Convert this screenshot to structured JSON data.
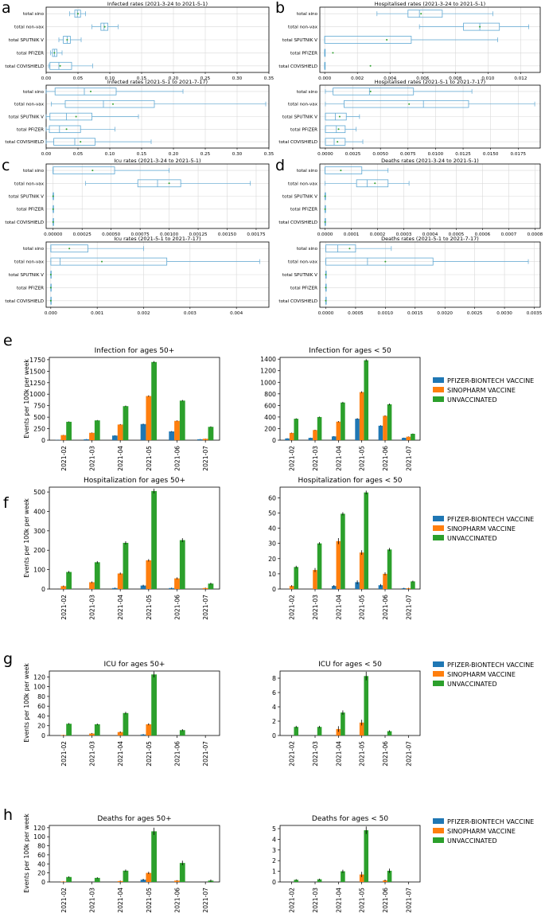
{
  "colors": {
    "pfizer": "#1f77b4",
    "sinopharm": "#ff7f0e",
    "unvax": "#2ca02c",
    "box": "#5fa8d3",
    "median": "#2ca02c",
    "axis": "#000000",
    "grid": "#d9d9d9"
  },
  "box_categories": [
    "total sino",
    "total non-vax",
    "total SPUTNIK V",
    "total PFIZER",
    "total COVISHIELD"
  ],
  "bar_categories": [
    "2021-02",
    "2021-03",
    "2021-04",
    "2021-05",
    "2021-06",
    "2021-07"
  ],
  "legend": [
    "PFIZER-BIONTECH VACCINE",
    "SINOPHARM VACCINE",
    "UNVACCINATED"
  ],
  "y_label": "Events per 100k per week",
  "panel_labels": [
    "a",
    "b",
    "c",
    "d",
    "e",
    "f",
    "g",
    "h"
  ],
  "chart_data": [
    {
      "type": "box",
      "id": "a1",
      "title": "Infected rates (2021-3-24 to 2021-5-1)",
      "xticks": [
        "0.00",
        "0.05",
        "0.10",
        "0.15",
        "0.20",
        "0.25",
        "0.30",
        "0.35"
      ],
      "xlim": [
        0,
        0.35
      ],
      "grid": true,
      "boxes": [
        {
          "min": 0.037,
          "q1": 0.045,
          "med": 0.049,
          "mean": 0.05,
          "q3": 0.054,
          "max": 0.062
        },
        {
          "min": 0.072,
          "q1": 0.086,
          "med": 0.091,
          "mean": 0.092,
          "q3": 0.097,
          "max": 0.113
        },
        {
          "min": 0.02,
          "q1": 0.027,
          "med": 0.033,
          "mean": 0.033,
          "q3": 0.038,
          "max": 0.055
        },
        {
          "min": 0.007,
          "q1": 0.01,
          "med": 0.013,
          "mean": 0.013,
          "q3": 0.017,
          "max": 0.025
        },
        {
          "min": 0.004,
          "q1": 0.006,
          "med": 0.02,
          "mean": 0.022,
          "q3": 0.04,
          "max": 0.073
        }
      ]
    },
    {
      "type": "box",
      "id": "b1",
      "title": "Hospitalised rates (2021-3-24 to 2021-5-1)",
      "xticks": [
        "0.000",
        "0.002",
        "0.004",
        "0.006",
        "0.008",
        "0.010",
        "0.012"
      ],
      "xlim": [
        -0.0003,
        0.0132
      ],
      "grid": true,
      "boxes": [
        {
          "min": 0.0032,
          "q1": 0.0051,
          "med": 0.0058,
          "mean": 0.0059,
          "q3": 0.0072,
          "max": 0.0103
        },
        {
          "min": 0.0058,
          "q1": 0.0085,
          "med": 0.0095,
          "mean": 0.0095,
          "q3": 0.0107,
          "max": 0.0125
        },
        {
          "min": 0.0,
          "q1": 0.0,
          "med": 0.0,
          "mean": 0.0038,
          "q3": 0.0053,
          "max": 0.0106
        },
        {
          "min": 0.0,
          "q1": 0.0,
          "med": 0.0,
          "mean": 0.0005,
          "q3": 0.0,
          "max": 0.0
        },
        {
          "min": 0.0,
          "q1": 0.0,
          "med": 0.0,
          "mean": 0.0028,
          "q3": 0.0,
          "max": 0.0
        }
      ]
    },
    {
      "type": "box",
      "id": "a2",
      "title": "Infected rates (2021-5-1 to 2021-7-17)",
      "xticks": [
        "0.00",
        "0.05",
        "0.10",
        "0.15",
        "0.20",
        "0.25",
        "0.30",
        "0.35"
      ],
      "xlim": [
        0,
        0.35
      ],
      "grid": true,
      "boxes": [
        {
          "min": 0.0,
          "q1": 0.014,
          "med": 0.06,
          "mean": 0.07,
          "q3": 0.11,
          "max": 0.215
        },
        {
          "min": 0.008,
          "q1": 0.03,
          "med": 0.09,
          "mean": 0.105,
          "q3": 0.17,
          "max": 0.345
        },
        {
          "min": 0.0,
          "q1": 0.006,
          "med": 0.032,
          "mean": 0.047,
          "q3": 0.072,
          "max": 0.145
        },
        {
          "min": 0.0,
          "q1": 0.005,
          "med": 0.021,
          "mean": 0.032,
          "q3": 0.054,
          "max": 0.108
        },
        {
          "min": 0.0,
          "q1": 0.012,
          "med": 0.045,
          "mean": 0.054,
          "q3": 0.077,
          "max": 0.165
        }
      ]
    },
    {
      "type": "box",
      "id": "b2",
      "title": "Hospitalised rates (2021-5-1 to 2021-7-17)",
      "xticks": [
        "0.0000",
        "0.0025",
        "0.0050",
        "0.0075",
        "0.0100",
        "0.0125",
        "0.0150",
        "0.0175"
      ],
      "xlim": [
        -0.0005,
        0.0195
      ],
      "grid": true,
      "boxes": [
        {
          "min": 0.0,
          "q1": 0.0007,
          "med": 0.004,
          "mean": 0.0041,
          "q3": 0.008,
          "max": 0.0133
        },
        {
          "min": 0.0,
          "q1": 0.0017,
          "med": 0.0089,
          "mean": 0.0076,
          "q3": 0.013,
          "max": 0.019
        },
        {
          "min": 0.0,
          "q1": 0.0,
          "med": 0.0009,
          "mean": 0.0013,
          "q3": 0.0019,
          "max": 0.0031
        },
        {
          "min": 0.0,
          "q1": 0.0,
          "med": 0.001,
          "mean": 0.0012,
          "q3": 0.0018,
          "max": 0.0028
        },
        {
          "min": 0.0,
          "q1": 0.0,
          "med": 0.0008,
          "mean": 0.0011,
          "q3": 0.0018,
          "max": 0.0034
        }
      ]
    },
    {
      "type": "box",
      "id": "c1",
      "title": "Icu rates (2021-3-24 to 2021-5-1)",
      "xticks": [
        "0.00000",
        "0.00025",
        "0.00050",
        "0.00075",
        "0.00100",
        "0.00125",
        "0.00150",
        "0.00175"
      ],
      "xlim": [
        -6e-05,
        0.00186
      ],
      "grid": true,
      "boxes": [
        {
          "min": 0.0,
          "q1": 0.0,
          "med": 0.0,
          "mean": 0.00034,
          "q3": 0.00053,
          "max": 0.001
        },
        {
          "min": 0.00028,
          "q1": 0.00073,
          "med": 0.0009,
          "mean": 0.001,
          "q3": 0.0011,
          "max": 0.0017
        },
        {
          "min": 0.0,
          "q1": 0.0,
          "med": 0.0,
          "mean": 0.0,
          "q3": 0.0,
          "max": 0.0
        },
        {
          "min": 0.0,
          "q1": 0.0,
          "med": 0.0,
          "mean": 0.0,
          "q3": 0.0,
          "max": 0.0
        },
        {
          "min": 0.0,
          "q1": 0.0,
          "med": 0.0,
          "mean": 0.0,
          "q3": 0.0,
          "max": 0.0
        }
      ]
    },
    {
      "type": "box",
      "id": "d1",
      "title": "Deaths rates (2021-3-24 to 2021-5-1)",
      "xticks": [
        "0.0000",
        "0.0001",
        "0.0002",
        "0.0003",
        "0.0004",
        "0.0005",
        "0.0006",
        "0.0007",
        "0.0008"
      ],
      "xlim": [
        -2e-05,
        0.00082
      ],
      "grid": true,
      "boxes": [
        {
          "min": 0.0,
          "q1": 0.0,
          "med": 0.0,
          "mean": 6e-05,
          "q3": 0.00014,
          "max": 0.00024
        },
        {
          "min": 0.0,
          "q1": 0.00012,
          "med": 0.00016,
          "mean": 0.00019,
          "q3": 0.00024,
          "max": 0.00032
        },
        {
          "min": 0.0,
          "q1": 0.0,
          "med": 0.0,
          "mean": 0.0,
          "q3": 0.0,
          "max": 0.0
        },
        {
          "min": 0.0,
          "q1": 0.0,
          "med": 0.0,
          "mean": 0.0,
          "q3": 0.0,
          "max": 0.0
        },
        {
          "min": 0.0,
          "q1": 0.0,
          "med": 0.0,
          "mean": 0.0,
          "q3": 0.0,
          "max": 0.0
        }
      ]
    },
    {
      "type": "box",
      "id": "c2",
      "title": "Icu rates (2021-5-1 to 2021-7-17)",
      "xticks": [
        "0.000",
        "0.001",
        "0.002",
        "0.003",
        "0.004"
      ],
      "xlim": [
        -0.0001,
        0.0047
      ],
      "grid": true,
      "boxes": [
        {
          "min": 0.0,
          "q1": 0.0,
          "med": 0.0,
          "mean": 0.0004,
          "q3": 0.0008,
          "max": 0.002
        },
        {
          "min": 0.0,
          "q1": 0.0,
          "med": 0.0002,
          "mean": 0.0011,
          "q3": 0.0025,
          "max": 0.0045
        },
        {
          "min": 0.0,
          "q1": 0.0,
          "med": 0.0,
          "mean": 0.0,
          "q3": 0.0,
          "max": 0.0
        },
        {
          "min": 0.0,
          "q1": 0.0,
          "med": 0.0,
          "mean": 0.0,
          "q3": 0.0,
          "max": 0.0
        },
        {
          "min": 0.0,
          "q1": 0.0,
          "med": 0.0,
          "mean": 0.0,
          "q3": 0.0,
          "max": 0.0
        }
      ]
    },
    {
      "type": "box",
      "id": "d2",
      "title": "Deaths rates (2021-5-1 to 2021-7-17)",
      "xticks": [
        "0.0000",
        "0.0005",
        "0.0010",
        "0.0015",
        "0.0020",
        "0.0025",
        "0.0030",
        "0.0035"
      ],
      "xlim": [
        -0.0001,
        0.0036
      ],
      "grid": true,
      "boxes": [
        {
          "min": 0.0,
          "q1": 0.0,
          "med": 0.0002,
          "mean": 0.0004,
          "q3": 0.0005,
          "max": 0.0011
        },
        {
          "min": 0.0,
          "q1": 0.0,
          "med": 0.0007,
          "mean": 0.001,
          "q3": 0.0018,
          "max": 0.0034
        },
        {
          "min": 0.0,
          "q1": 0.0,
          "med": 0.0,
          "mean": 0.0,
          "q3": 0.0,
          "max": 0.0
        },
        {
          "min": 0.0,
          "q1": 0.0,
          "med": 0.0,
          "mean": 0.0,
          "q3": 0.0,
          "max": 0.0
        },
        {
          "min": 0.0,
          "q1": 0.0,
          "med": 0.0,
          "mean": 0.0,
          "q3": 0.0,
          "max": 0.0
        }
      ]
    },
    {
      "type": "bar",
      "id": "e1",
      "title": "Infection for ages 50+",
      "yticks": [
        "0",
        "250",
        "500",
        "750",
        "1000",
        "1250",
        "1500",
        "1750"
      ],
      "ylim": [
        0,
        1800
      ],
      "series": [
        {
          "name": "PFIZER-BIONTECH VACCINE",
          "values": [
            5,
            20,
            100,
            350,
            190,
            20
          ],
          "err": [
            2,
            3,
            6,
            10,
            8,
            3
          ]
        },
        {
          "name": "SINOPHARM VACCINE",
          "values": [
            110,
            160,
            340,
            960,
            420,
            30
          ],
          "err": [
            5,
            6,
            10,
            15,
            10,
            4
          ]
        },
        {
          "name": "UNVACCINATED",
          "values": [
            400,
            430,
            740,
            1700,
            860,
            290
          ],
          "err": [
            8,
            8,
            12,
            20,
            15,
            10
          ]
        }
      ]
    },
    {
      "type": "bar",
      "id": "e2",
      "title": "Infection for ages < 50",
      "yticks": [
        "0",
        "200",
        "400",
        "600",
        "800",
        "1000",
        "1200",
        "1400"
      ],
      "ylim": [
        0,
        1430
      ],
      "series": [
        {
          "name": "PFIZER-BIONTECH VACCINE",
          "values": [
            30,
            40,
            65,
            370,
            250,
            40
          ],
          "err": [
            3,
            3,
            5,
            10,
            8,
            4
          ]
        },
        {
          "name": "SINOPHARM VACCINE",
          "values": [
            125,
            175,
            320,
            830,
            420,
            60
          ],
          "err": [
            6,
            6,
            10,
            15,
            10,
            4
          ]
        },
        {
          "name": "UNVACCINATED",
          "values": [
            370,
            400,
            650,
            1380,
            620,
            110
          ],
          "err": [
            8,
            8,
            12,
            20,
            15,
            6
          ]
        }
      ]
    },
    {
      "type": "bar",
      "id": "f1",
      "title": "Hospitalization for ages 50+",
      "yticks": [
        "0",
        "100",
        "200",
        "300",
        "400",
        "500"
      ],
      "ylim": [
        0,
        525
      ],
      "series": [
        {
          "name": "PFIZER-BIONTECH VACCINE",
          "values": [
            0,
            0,
            5,
            18,
            5,
            0
          ],
          "err": [
            1,
            1,
            2,
            4,
            2,
            0
          ]
        },
        {
          "name": "SINOPHARM VACCINE",
          "values": [
            15,
            35,
            80,
            148,
            55,
            5
          ],
          "err": [
            3,
            4,
            5,
            6,
            5,
            2
          ]
        },
        {
          "name": "UNVACCINATED",
          "values": [
            88,
            138,
            238,
            505,
            252,
            28
          ],
          "err": [
            5,
            6,
            8,
            12,
            10,
            5
          ]
        }
      ]
    },
    {
      "type": "bar",
      "id": "f2",
      "title": "Hospitalization for ages < 50",
      "yticks": [
        "0",
        "10",
        "20",
        "30",
        "40",
        "50",
        "60"
      ],
      "ylim": [
        0,
        67
      ],
      "series": [
        {
          "name": "PFIZER-BIONTECH VACCINE",
          "values": [
            0,
            0,
            2,
            4.5,
            2.5,
            0.5
          ],
          "err": [
            0,
            0,
            0.6,
            1.2,
            0.8,
            0.3
          ]
        },
        {
          "name": "SINOPHARM VACCINE",
          "values": [
            2,
            12.5,
            31.5,
            24,
            10,
            0.5
          ],
          "err": [
            0.6,
            1.3,
            2,
            1.5,
            1,
            0.3
          ]
        },
        {
          "name": "UNVACCINATED",
          "values": [
            14.5,
            30,
            49.5,
            63.5,
            26,
            5
          ],
          "err": [
            0.8,
            0.8,
            1,
            1.2,
            1,
            0.5
          ]
        }
      ]
    },
    {
      "type": "bar",
      "id": "g1",
      "title": "ICU for ages 50+",
      "yticks": [
        "0",
        "20",
        "40",
        "60",
        "80",
        "100",
        "120"
      ],
      "ylim": [
        0,
        132
      ],
      "series": [
        {
          "name": "PFIZER-BIONTECH VACCINE",
          "values": [
            0,
            0,
            0,
            2,
            0,
            0
          ],
          "err": [
            0,
            0,
            0,
            0.8,
            0,
            0
          ]
        },
        {
          "name": "SINOPHARM VACCINE",
          "values": [
            1,
            4,
            7,
            23,
            0,
            0
          ],
          "err": [
            0.5,
            1,
            1.5,
            2,
            0,
            0
          ]
        },
        {
          "name": "UNVACCINATED",
          "values": [
            24,
            23,
            46,
            125,
            11,
            0
          ],
          "err": [
            1.5,
            1.5,
            2.5,
            6,
            2,
            0
          ]
        }
      ]
    },
    {
      "type": "bar",
      "id": "g2",
      "title": "ICU for ages < 50",
      "yticks": [
        "0",
        "2",
        "4",
        "6",
        "8"
      ],
      "ylim": [
        0,
        9
      ],
      "series": [
        {
          "name": "PFIZER-BIONTECH VACCINE",
          "values": [
            0,
            0,
            0,
            0,
            0,
            0
          ],
          "err": [
            0,
            0,
            0,
            0,
            0,
            0
          ]
        },
        {
          "name": "SINOPHARM VACCINE",
          "values": [
            0,
            0,
            0.9,
            1.8,
            0,
            0
          ],
          "err": [
            0,
            0,
            0.4,
            0.4,
            0,
            0
          ]
        },
        {
          "name": "UNVACCINATED",
          "values": [
            1.2,
            1.2,
            3.2,
            8.3,
            0.6,
            0
          ],
          "err": [
            0.15,
            0.15,
            0.3,
            0.6,
            0.12,
            0
          ]
        }
      ]
    },
    {
      "type": "bar",
      "id": "h1",
      "title": "Deaths for ages 50+",
      "yticks": [
        "0",
        "20",
        "40",
        "60",
        "80",
        "100",
        "120"
      ],
      "ylim": [
        0,
        125
      ],
      "series": [
        {
          "name": "PFIZER-BIONTECH VACCINE",
          "values": [
            0,
            0,
            0,
            5,
            0,
            0
          ],
          "err": [
            0,
            0,
            0,
            2,
            0,
            0
          ]
        },
        {
          "name": "SINOPHARM VACCINE",
          "values": [
            1,
            0,
            2,
            20,
            3,
            0
          ],
          "err": [
            0.5,
            0,
            1,
            2.5,
            1,
            0
          ]
        },
        {
          "name": "UNVACCINATED",
          "values": [
            11,
            9,
            25,
            112,
            42,
            3
          ],
          "err": [
            1.5,
            1.5,
            2.5,
            8,
            5,
            2.5
          ]
        }
      ]
    },
    {
      "type": "bar",
      "id": "h2",
      "title": "Deaths for ages < 50",
      "yticks": [
        "0",
        "1",
        "2",
        "3",
        "4",
        "5"
      ],
      "ylim": [
        0,
        5.3
      ],
      "series": [
        {
          "name": "PFIZER-BIONTECH VACCINE",
          "values": [
            0,
            0,
            0,
            0,
            0,
            0
          ],
          "err": [
            0,
            0,
            0,
            0,
            0,
            0
          ]
        },
        {
          "name": "SINOPHARM VACCINE",
          "values": [
            0,
            0,
            0,
            0.7,
            0.15,
            0
          ],
          "err": [
            0,
            0,
            0,
            0.25,
            0.08,
            0
          ]
        },
        {
          "name": "UNVACCINATED",
          "values": [
            0.2,
            0.25,
            1.0,
            4.85,
            1.05,
            0
          ],
          "err": [
            0.06,
            0.06,
            0.15,
            0.35,
            0.2,
            0
          ]
        }
      ]
    }
  ]
}
